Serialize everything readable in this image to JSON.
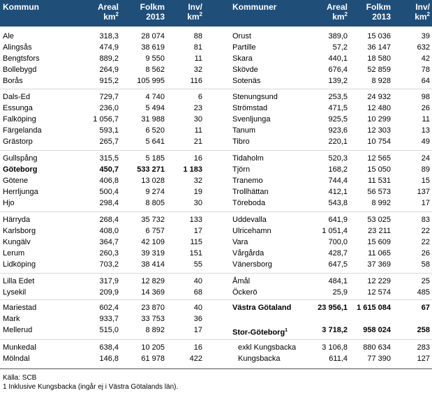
{
  "header": {
    "left": {
      "kommun": "Kommun",
      "areal": "Areal",
      "areal_unit": "km",
      "areal_exp": "2",
      "folkm": "Folkm",
      "folkm_year": "2013",
      "inv": "Inv/",
      "inv_unit": "km",
      "inv_exp": "2"
    },
    "right": {
      "kommun": "Kommuner",
      "areal": "Areal",
      "areal_unit": "km",
      "areal_exp": "2",
      "folkm": "Folkm",
      "folkm_year": "2013",
      "inv": "Inv/",
      "inv_unit": "km",
      "inv_exp": "2"
    }
  },
  "left_rows": [
    {
      "name": "Ale",
      "areal": "318,3",
      "folkm": "28 074",
      "inv": "88"
    },
    {
      "name": "Alingsås",
      "areal": "474,9",
      "folkm": "38 619",
      "inv": "81"
    },
    {
      "name": "Bengtsfors",
      "areal": "889,2",
      "folkm": "9 550",
      "inv": "11"
    },
    {
      "name": "Bollebygd",
      "areal": "264,9",
      "folkm": "8 562",
      "inv": "32"
    },
    {
      "name": "Borås",
      "areal": "915,2",
      "folkm": "105 995",
      "inv": "116"
    },
    {
      "name": "Dals-Ed",
      "areal": "729,7",
      "folkm": "4 740",
      "inv": "6"
    },
    {
      "name": "Essunga",
      "areal": "236,0",
      "folkm": "5 494",
      "inv": "23"
    },
    {
      "name": "Falköping",
      "areal": "1 056,7",
      "folkm": "31 988",
      "inv": "30"
    },
    {
      "name": "Färgelanda",
      "areal": "593,1",
      "folkm": "6 520",
      "inv": "11"
    },
    {
      "name": "Grästorp",
      "areal": "265,7",
      "folkm": "5 641",
      "inv": "21"
    },
    {
      "name": "Gullspång",
      "areal": "315,5",
      "folkm": "5 185",
      "inv": "16"
    },
    {
      "name": "Göteborg",
      "areal": "450,7",
      "folkm": "533 271",
      "inv": "1 183",
      "bold": true
    },
    {
      "name": "Götene",
      "areal": "406,8",
      "folkm": "13 028",
      "inv": "32"
    },
    {
      "name": "Herrljunga",
      "areal": "500,4",
      "folkm": "9 274",
      "inv": "19"
    },
    {
      "name": "Hjo",
      "areal": "298,4",
      "folkm": "8 805",
      "inv": "30"
    },
    {
      "name": "Härryda",
      "areal": "268,4",
      "folkm": "35 732",
      "inv": "133"
    },
    {
      "name": "Karlsborg",
      "areal": "408,0",
      "folkm": "6 757",
      "inv": "17"
    },
    {
      "name": "Kungälv",
      "areal": "364,7",
      "folkm": "42 109",
      "inv": "115"
    },
    {
      "name": "Lerum",
      "areal": "260,3",
      "folkm": "39 319",
      "inv": "151"
    },
    {
      "name": "Lidköping",
      "areal": "703,2",
      "folkm": "38 414",
      "inv": "55"
    },
    {
      "name": "Lilla Edet",
      "areal": "317,9",
      "folkm": "12 829",
      "inv": "40"
    },
    {
      "name": "Lysekil",
      "areal": "209,9",
      "folkm": "14 369",
      "inv": "68"
    },
    {
      "name": "Mariestad",
      "areal": "602,4",
      "folkm": "23 870",
      "inv": "40"
    },
    {
      "name": "Mark",
      "areal": "933,7",
      "folkm": "33 753",
      "inv": "36"
    },
    {
      "name": "Mellerud",
      "areal": "515,0",
      "folkm": "8 892",
      "inv": "17"
    },
    {
      "name": "Munkedal",
      "areal": "638,4",
      "folkm": "10 205",
      "inv": "16"
    },
    {
      "name": "Mölndal",
      "areal": "146,8",
      "folkm": "61 978",
      "inv": "422"
    }
  ],
  "right_rows": [
    {
      "name": "Orust",
      "areal": "389,0",
      "folkm": "15 036",
      "inv": "39"
    },
    {
      "name": "Partille",
      "areal": "57,2",
      "folkm": "36 147",
      "inv": "632"
    },
    {
      "name": "Skara",
      "areal": "440,1",
      "folkm": "18 580",
      "inv": "42"
    },
    {
      "name": "Skövde",
      "areal": "676,4",
      "folkm": "52 859",
      "inv": "78"
    },
    {
      "name": "Sotenäs",
      "areal": "139,2",
      "folkm": "8 928",
      "inv": "64"
    },
    {
      "name": "Stenungsund",
      "areal": "253,5",
      "folkm": "24 932",
      "inv": "98"
    },
    {
      "name": "Strömstad",
      "areal": "471,5",
      "folkm": "12 480",
      "inv": "26"
    },
    {
      "name": "Svenljunga",
      "areal": "925,5",
      "folkm": "10 299",
      "inv": "11"
    },
    {
      "name": "Tanum",
      "areal": "923,6",
      "folkm": "12 303",
      "inv": "13"
    },
    {
      "name": "Tibro",
      "areal": "220,1",
      "folkm": "10 754",
      "inv": "49"
    },
    {
      "name": "Tidaholm",
      "areal": "520,3",
      "folkm": "12 565",
      "inv": "24"
    },
    {
      "name": "Tjörn",
      "areal": "168,2",
      "folkm": "15 050",
      "inv": "89"
    },
    {
      "name": "Tranemo",
      "areal": "744,4",
      "folkm": "11 531",
      "inv": "15"
    },
    {
      "name": "Trollhättan",
      "areal": "412,1",
      "folkm": "56 573",
      "inv": "137"
    },
    {
      "name": "Töreboda",
      "areal": "543,8",
      "folkm": "8 992",
      "inv": "17"
    },
    {
      "name": "Uddevalla",
      "areal": "641,9",
      "folkm": "53 025",
      "inv": "83"
    },
    {
      "name": "Ulricehamn",
      "areal": "1 051,4",
      "folkm": "23 211",
      "inv": "22"
    },
    {
      "name": "Vara",
      "areal": "700,0",
      "folkm": "15 609",
      "inv": "22"
    },
    {
      "name": "Vårgårda",
      "areal": "428,7",
      "folkm": "11 065",
      "inv": "26"
    },
    {
      "name": "Vänersborg",
      "areal": "647,5",
      "folkm": "37 369",
      "inv": "58"
    },
    {
      "name": "Åmål",
      "areal": "484,1",
      "folkm": "12 229",
      "inv": "25"
    },
    {
      "name": "Öckerö",
      "areal": "25,9",
      "folkm": "12 574",
      "inv": "485"
    },
    {
      "name": "Västra Götaland",
      "areal": "23 956,1",
      "folkm": "1 615 084",
      "inv": "67",
      "bold": true
    },
    {
      "name": "Stor-Göteborg",
      "sup": "1",
      "areal": "3 718,2",
      "folkm": "958 024",
      "inv": "258",
      "bold": true
    },
    {
      "name": "exkl Kungsbacka",
      "areal": "3 106,8",
      "folkm": "880 634",
      "inv": "283",
      "indent": true
    },
    {
      "name": "Kungsbacka",
      "areal": "611,4",
      "folkm": "77 390",
      "inv": "127",
      "indent": true
    }
  ],
  "footnotes": {
    "source": "Källa:  SCB",
    "note_num": "1",
    "note": " Inklusive Kungsbacka (ingår ej i Västra Götalands län)."
  }
}
